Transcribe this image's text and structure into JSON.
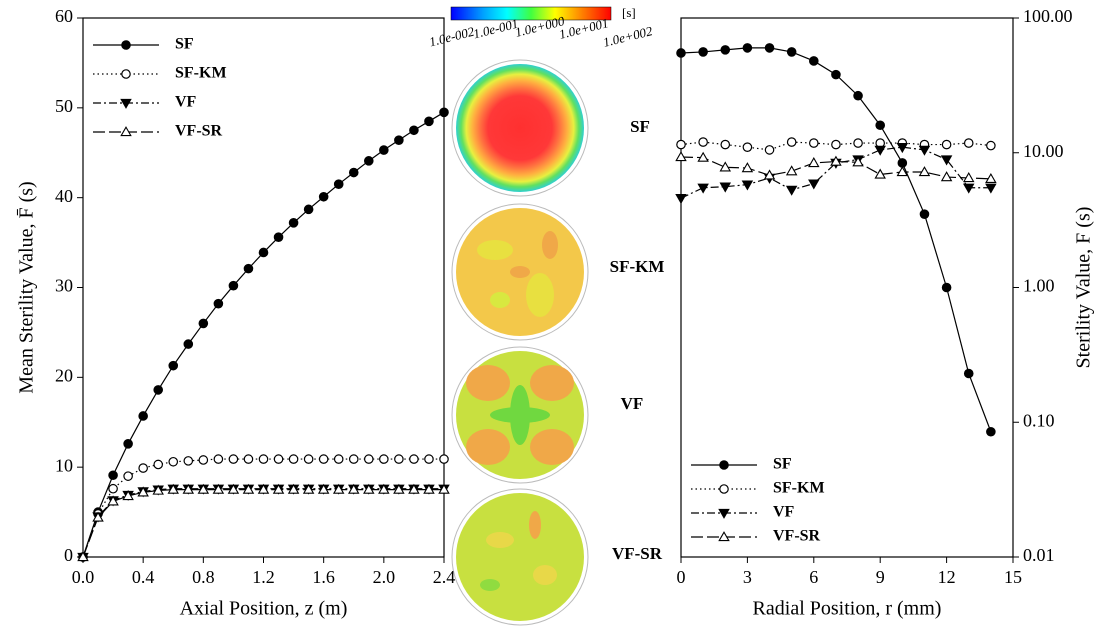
{
  "chart_data": [
    {
      "type": "line",
      "x_label": "Axial Position, z (m)",
      "y_label": "Mean Sterility Value, F̄ (s)",
      "x": [
        0,
        0.1,
        0.2,
        0.3,
        0.4,
        0.5,
        0.6,
        0.7,
        0.8,
        0.9,
        1.0,
        1.1,
        1.2,
        1.3,
        1.4,
        1.5,
        1.6,
        1.7,
        1.8,
        1.9,
        2.0,
        2.1,
        2.2,
        2.3,
        2.4
      ],
      "series": [
        {
          "name": "SF",
          "color": "#000000",
          "marker": "circle",
          "filled": true,
          "line_style": "solid",
          "values": [
            0,
            5.0,
            9.1,
            12.6,
            15.7,
            18.6,
            21.3,
            23.7,
            26.0,
            28.2,
            30.2,
            32.1,
            33.9,
            35.6,
            37.2,
            38.7,
            40.1,
            41.5,
            42.8,
            44.1,
            45.3,
            46.4,
            47.5,
            48.5,
            49.5
          ]
        },
        {
          "name": "SF-KM",
          "color": "#000000",
          "marker": "circle",
          "filled": false,
          "line_style": "dotted",
          "values": [
            0,
            4.8,
            7.6,
            9.0,
            9.9,
            10.3,
            10.6,
            10.7,
            10.8,
            10.9,
            10.9,
            10.9,
            10.9,
            10.9,
            10.9,
            10.9,
            10.9,
            10.9,
            10.9,
            10.9,
            10.9,
            10.9,
            10.9,
            10.9,
            10.9
          ]
        },
        {
          "name": "VF",
          "color": "#000000",
          "marker": "triangle-down",
          "filled": true,
          "line_style": "dashdot",
          "values": [
            0,
            4.5,
            6.3,
            6.9,
            7.3,
            7.5,
            7.6,
            7.6,
            7.6,
            7.6,
            7.6,
            7.6,
            7.6,
            7.6,
            7.6,
            7.6,
            7.6,
            7.6,
            7.6,
            7.6,
            7.6,
            7.6,
            7.6,
            7.6,
            7.6
          ]
        },
        {
          "name": "VF-SR",
          "color": "#000000",
          "marker": "triangle-up",
          "filled": false,
          "line_style": "dashed",
          "values": [
            0,
            4.4,
            6.2,
            6.8,
            7.2,
            7.4,
            7.5,
            7.5,
            7.5,
            7.5,
            7.5,
            7.5,
            7.5,
            7.5,
            7.5,
            7.5,
            7.5,
            7.5,
            7.5,
            7.5,
            7.5,
            7.5,
            7.5,
            7.5,
            7.5
          ]
        }
      ],
      "xlim": [
        0,
        2.4
      ],
      "xticks": [
        {
          "value": 0,
          "label": "0.0"
        },
        0.4,
        0.8,
        1.2,
        1.6,
        {
          "value": 2,
          "label": "2.0"
        },
        2.4
      ],
      "ylim": [
        0,
        60
      ],
      "yticks": [
        0,
        10,
        20,
        30,
        40,
        50,
        60
      ],
      "log_y": false,
      "y_axis_side": "left",
      "legend": "upper left"
    },
    {
      "type": "line",
      "x_label": "Radial Position, r (mm)",
      "y_label": "Sterility Value, F (s)",
      "x": [
        0,
        1,
        2,
        3,
        4,
        5,
        6,
        7,
        8,
        9,
        10,
        11,
        12,
        13,
        14
      ],
      "series": [
        {
          "name": "SF",
          "color": "#000000",
          "marker": "circle",
          "filled": true,
          "line_style": "solid",
          "values": [
            55,
            56,
            58,
            60,
            60,
            56,
            48,
            38,
            26.5,
            16,
            8.4,
            3.5,
            1.0,
            0.23,
            0.085
          ]
        },
        {
          "name": "SF-KM",
          "color": "#000000",
          "marker": "circle",
          "filled": false,
          "line_style": "dotted",
          "values": [
            11.5,
            12,
            11.5,
            11,
            10.5,
            12,
            11.8,
            11.5,
            11.8,
            11.8,
            11.8,
            11.5,
            11.5,
            11.8,
            11.3
          ]
        },
        {
          "name": "VF",
          "color": "#000000",
          "marker": "triangle-down",
          "filled": true,
          "line_style": "dashdot",
          "values": [
            4.6,
            5.5,
            5.6,
            5.8,
            6.5,
            5.3,
            5.9,
            8.4,
            8.9,
            10.5,
            11,
            10.5,
            8.9,
            5.5,
            5.5
          ]
        },
        {
          "name": "VF-SR",
          "color": "#000000",
          "marker": "triangle-up",
          "filled": false,
          "line_style": "dashed",
          "values": [
            9.3,
            9.2,
            7.8,
            7.7,
            6.8,
            7.3,
            8.4,
            8.6,
            8.5,
            6.9,
            7.2,
            7.2,
            6.6,
            6.5,
            6.4
          ]
        }
      ],
      "xlim": [
        0,
        15
      ],
      "xticks": [
        0,
        3,
        6,
        9,
        12,
        15
      ],
      "ylim": [
        0.01,
        100
      ],
      "yticks": [
        {
          "value": 0.01,
          "label": "0.01"
        },
        {
          "value": 0.1,
          "label": "0.10"
        },
        {
          "value": 1,
          "label": "1.00"
        },
        {
          "value": 10,
          "label": "10.00"
        },
        {
          "value": 100,
          "label": "100.00"
        }
      ],
      "log_y": true,
      "y_axis_side": "right",
      "legend": "lower left"
    }
  ],
  "contour_panel": {
    "colorbar": {
      "unit": "[s]",
      "tick_labels": [
        "1.0e-002",
        "1.0e-001",
        "1.0e+000",
        "1.0e+001",
        "1.0e+002"
      ]
    },
    "maps": [
      {
        "label": "SF"
      },
      {
        "label": "SF-KM"
      },
      {
        "label": "VF"
      },
      {
        "label": "VF-SR"
      }
    ]
  }
}
